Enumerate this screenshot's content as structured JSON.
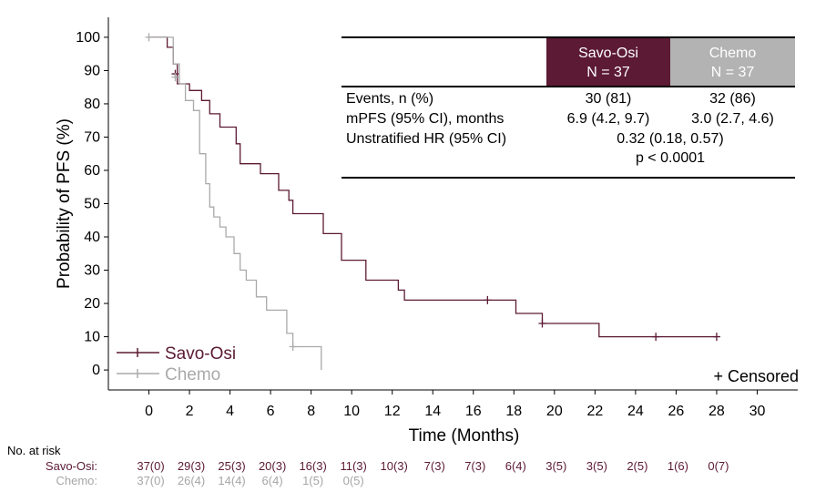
{
  "chart_data": {
    "type": "line",
    "title": "",
    "xlabel": "Time (Months)",
    "ylabel": "Probability of PFS (%)",
    "xlim": [
      -2,
      32
    ],
    "ylim": [
      -6,
      106
    ],
    "x_ticks": [
      0,
      2,
      4,
      6,
      8,
      10,
      12,
      14,
      16,
      18,
      20,
      22,
      24,
      26,
      28,
      30
    ],
    "y_ticks": [
      0,
      10,
      20,
      30,
      40,
      50,
      60,
      70,
      80,
      90,
      100
    ],
    "grid": false,
    "legend_position": "bottom-left",
    "censored_label": "+ Censored",
    "series": [
      {
        "name": "Savo-Osi",
        "color": "#5c1a34",
        "x": [
          0,
          0.9,
          0.9,
          1.2,
          1.2,
          1.4,
          1.4,
          2.0,
          2.0,
          2.6,
          2.6,
          3.0,
          3.0,
          3.5,
          3.5,
          4.3,
          4.3,
          4.5,
          4.5,
          5.5,
          5.5,
          6.4,
          6.4,
          6.9,
          6.9,
          7.1,
          7.1,
          8.6,
          8.6,
          9.5,
          9.5,
          10.7,
          10.7,
          12.3,
          12.3,
          12.6,
          12.6,
          14.4,
          14.4,
          16.7,
          18.1,
          18.1,
          19.4,
          19.4,
          22.2,
          22.2,
          28.0
        ],
        "y": [
          100,
          100,
          97,
          97,
          92,
          92,
          86,
          86,
          84,
          84,
          81,
          81,
          77,
          77,
          73,
          73,
          68,
          68,
          62,
          62,
          59,
          59,
          54,
          54,
          51,
          51,
          47,
          47,
          41,
          41,
          33,
          33,
          27,
          27,
          24,
          24,
          21,
          21,
          21,
          21,
          21,
          17,
          17,
          14,
          14,
          10,
          10
        ],
        "censored": [
          {
            "x": 1.3,
            "y": 89
          },
          {
            "x": 16.7,
            "y": 21
          },
          {
            "x": 19.4,
            "y": 14
          },
          {
            "x": 25.0,
            "y": 10
          },
          {
            "x": 28.0,
            "y": 10
          }
        ]
      },
      {
        "name": "Chemo",
        "color": "#aaaaaa",
        "x": [
          0,
          1.2,
          1.2,
          1.5,
          1.5,
          1.8,
          1.8,
          2.2,
          2.2,
          2.5,
          2.5,
          2.8,
          2.8,
          3.0,
          3.0,
          3.2,
          3.2,
          3.5,
          3.5,
          3.8,
          3.8,
          4.2,
          4.2,
          4.5,
          4.5,
          4.8,
          4.8,
          5.3,
          5.3,
          5.8,
          5.8,
          6.8,
          6.8,
          7.1,
          7.1,
          8.5,
          8.5
        ],
        "y": [
          100,
          100,
          92,
          92,
          86,
          86,
          81,
          81,
          78,
          78,
          65,
          65,
          56,
          56,
          49,
          49,
          46,
          46,
          43,
          43,
          40,
          40,
          35,
          35,
          30,
          30,
          27,
          27,
          22,
          22,
          18,
          18,
          11,
          11,
          7,
          7,
          0
        ],
        "censored": [
          {
            "x": 0,
            "y": 100
          },
          {
            "x": 1.3,
            "y": 88
          },
          {
            "x": 7.1,
            "y": 7
          }
        ]
      }
    ],
    "stats_table": {
      "header_savo": [
        "Savo-Osi",
        "N = 37"
      ],
      "header_chemo": [
        "Chemo",
        "N = 37"
      ],
      "header_savo_color": "#5c1a34",
      "header_chemo_color": "#b3b3b3",
      "rows": [
        {
          "label": "Events, n (%)",
          "savo": "30 (81)",
          "chemo": "32 (86)"
        },
        {
          "label": "mPFS (95% CI), months",
          "savo": "6.9 (4.2, 9.7)",
          "chemo": "3.0 (2.7, 4.6)"
        }
      ],
      "hr_label": "Unstratified HR (95% CI)",
      "hr_value": "0.32 (0.18, 0.57)",
      "p_value": "p < 0.0001"
    },
    "risk_table": {
      "title": "No. at risk",
      "x": [
        0,
        2,
        4,
        6,
        8,
        10,
        12,
        14,
        16,
        18,
        20,
        22,
        24,
        26,
        28
      ],
      "rows": [
        {
          "label": "Savo-Osi:",
          "color": "#5c1a34",
          "values": [
            "37(0)",
            "29(3)",
            "25(3)",
            "20(3)",
            "16(3)",
            "11(3)",
            "10(3)",
            "7(3)",
            "7(3)",
            "6(4)",
            "3(5)",
            "3(5)",
            "2(5)",
            "1(6)",
            "0(7)"
          ]
        },
        {
          "label": "Chemo:",
          "color": "#a6a6a6",
          "values": [
            "37(0)",
            "26(4)",
            "14(4)",
            "6(4)",
            "1(5)",
            "0(5)"
          ]
        }
      ]
    }
  }
}
